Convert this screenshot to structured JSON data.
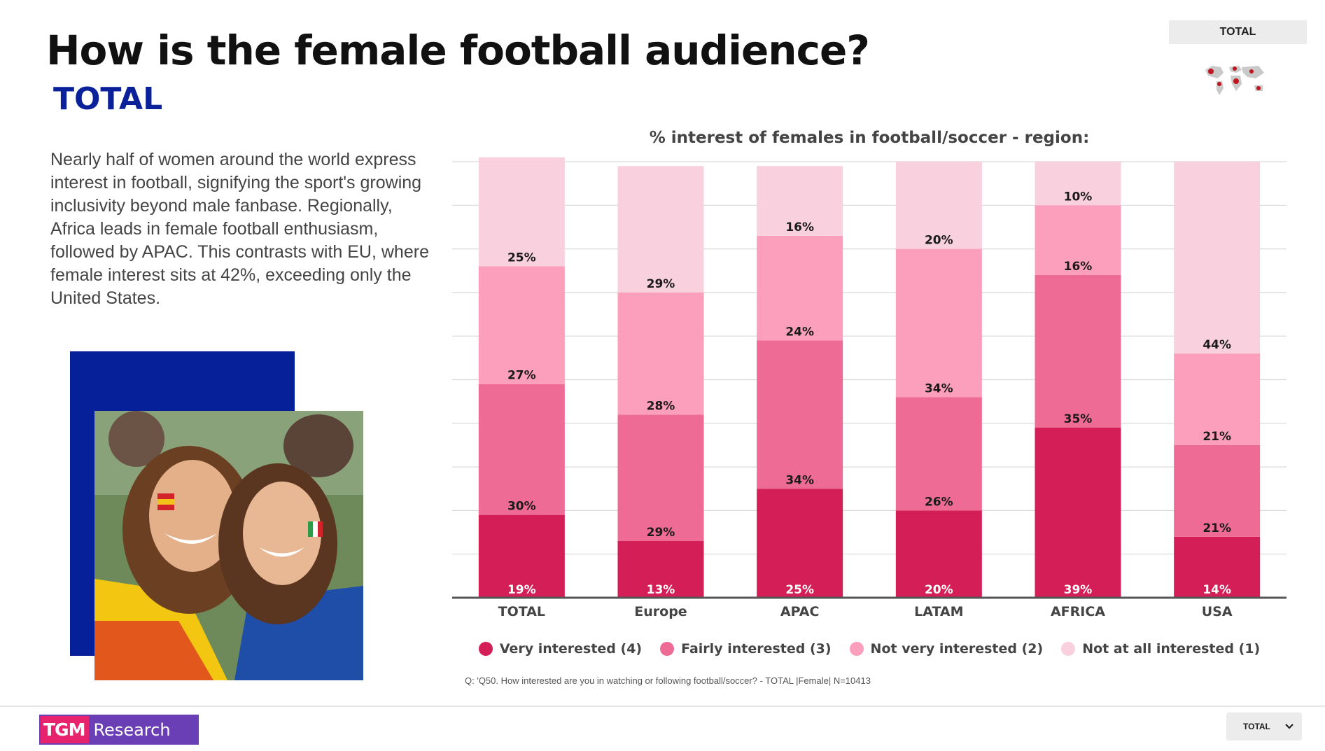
{
  "header": {
    "title": "How is the female football audience?",
    "subtitle": "TOTAL"
  },
  "region_tag": "TOTAL",
  "body_text": "Nearly half of women around the world express interest in football, signifying the sport's growing inclusivity beyond male fanbase. Regionally, Africa leads in female football enthusiasm, followed by APAC. This contrasts with EU, where female interest sits at 42%, exceeding only the United States.",
  "chart_data": {
    "type": "bar",
    "stacked": true,
    "title": "% interest of females in football/soccer -  region:",
    "categories": [
      "TOTAL",
      "Europe",
      "APAC",
      "LATAM",
      "AFRICA",
      "USA"
    ],
    "ylim": [
      0,
      100
    ],
    "grid": true,
    "legend_position": "bottom",
    "series": [
      {
        "name": "Very interested (4)",
        "color": "#d41e57",
        "values": [
          19,
          13,
          25,
          20,
          39,
          14
        ]
      },
      {
        "name": "Fairly interested (3)",
        "color": "#ee6b96",
        "values": [
          30,
          29,
          34,
          26,
          35,
          21
        ]
      },
      {
        "name": "Not very interested (2)",
        "color": "#fb9fbc",
        "values": [
          27,
          28,
          24,
          34,
          16,
          21
        ]
      },
      {
        "name": "Not at all interested (1)",
        "color": "#f9d1de",
        "values": [
          25,
          29,
          16,
          20,
          10,
          44
        ]
      }
    ],
    "data_labels": [
      [
        "19%",
        "13%",
        "25%",
        "20%",
        "39%",
        "14%"
      ],
      [
        "30%",
        "29%",
        "34%",
        "26%",
        "35%",
        "21%"
      ],
      [
        "27%",
        "28%",
        "24%",
        "34%",
        "16%",
        "21%"
      ],
      [
        "25%",
        "29%",
        "16%",
        "20%",
        "10%",
        "44%"
      ]
    ]
  },
  "footnote": "Q: 'Q50. How interested are you in watching or following football/soccer? - TOTAL |Female| N=10413",
  "footer": {
    "logo_left": "TGM",
    "logo_right": "Research",
    "dropdown_value": "TOTAL"
  }
}
